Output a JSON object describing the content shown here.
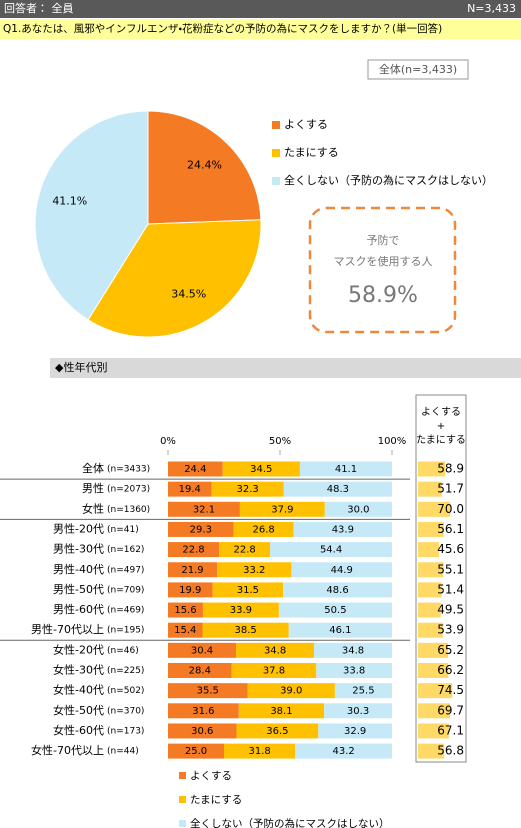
{
  "header": {
    "respondent": "回答者： 全員",
    "n": "N=3,433",
    "question": "Q1.あなたは、風邪やインフルエンザ・花粉症などの予防の為にマスクをしますか？(単一回答)"
  },
  "total_box": "全体(n=3,433)",
  "callout": {
    "lines": [
      "予防で",
      "マスクを使用する人"
    ],
    "value": "58.9%"
  },
  "section_title": "◆性年代別",
  "chart_data": [
    {
      "type": "pie",
      "labels": [
        "よくする",
        "たまにする",
        "全くしない（予防の為にマスクはしない）"
      ],
      "values": [
        24.4,
        34.5,
        41.1
      ],
      "value_labels": [
        "24.4%",
        "34.5%",
        "41.1%"
      ],
      "colors": [
        "#f47a24",
        "#ffc000",
        "#c6e9f8"
      ]
    },
    {
      "type": "stacked-barh",
      "categories": [
        "全体",
        "男性",
        "女性",
        "男性-20代",
        "男性-30代",
        "男性-40代",
        "男性-50代",
        "男性-60代",
        "男性-70代以上",
        "女性-20代",
        "女性-30代",
        "女性-40代",
        "女性-50代",
        "女性-60代",
        "女性-70代以上"
      ],
      "category_notes": [
        "(n=3433)",
        "(n=2073)",
        "(n=1360)",
        "(n=41)",
        "(n=162)",
        "(n=497)",
        "(n=709)",
        "(n=469)",
        "(n=195)",
        "(n=46)",
        "(n=225)",
        "(n=502)",
        "(n=370)",
        "(n=173)",
        "(n=44)"
      ],
      "series": [
        {
          "name": "よくする",
          "color": "#f47a24",
          "values": [
            24.4,
            19.4,
            32.1,
            29.3,
            22.8,
            21.9,
            19.9,
            15.6,
            15.4,
            30.4,
            28.4,
            35.5,
            31.6,
            30.6,
            25.0
          ],
          "value_labels": [
            "24.4",
            "19.4",
            "32.1",
            "29.3",
            "22.8",
            "21.9",
            "19.9",
            "15.6",
            "15.4",
            "30.4",
            "28.4",
            "35.5",
            "31.6",
            "30.6",
            "25.0"
          ]
        },
        {
          "name": "たまにする",
          "color": "#ffc000",
          "values": [
            34.5,
            32.3,
            37.9,
            26.8,
            22.8,
            33.2,
            31.5,
            33.9,
            38.5,
            34.8,
            37.8,
            39.0,
            38.1,
            36.5,
            31.8
          ],
          "value_labels": [
            "34.5",
            "32.3",
            "37.9",
            "26.8",
            "22.8",
            "33.2",
            "31.5",
            "33.9",
            "38.5",
            "34.8",
            "37.8",
            "39.0",
            "38.1",
            "36.5",
            "31.8"
          ]
        },
        {
          "name": "全くしない（予防の為にマスクはしない）",
          "color": "#c6e9f8",
          "values": [
            41.1,
            48.3,
            30.0,
            43.9,
            54.4,
            44.9,
            48.6,
            50.5,
            46.1,
            34.8,
            33.8,
            25.5,
            30.3,
            32.9,
            43.2
          ],
          "value_labels": [
            "41.1",
            "48.3",
            "30.0",
            "43.9",
            "54.4",
            "44.9",
            "48.6",
            "50.5",
            "46.1",
            "34.8",
            "33.8",
            "25.5",
            "30.3",
            "32.9",
            "43.2"
          ]
        }
      ],
      "sum_header": [
        "よくする",
        "+",
        "たまにする"
      ],
      "sum_values": [
        58.9,
        51.7,
        70.0,
        56.1,
        45.6,
        55.1,
        51.4,
        49.5,
        53.9,
        65.2,
        66.2,
        74.5,
        69.7,
        67.1,
        56.8
      ],
      "sum_value_labels": [
        "58.9",
        "51.7",
        "70.0",
        "56.1",
        "45.6",
        "55.1",
        "51.4",
        "49.5",
        "53.9",
        "65.2",
        "66.2",
        "74.5",
        "69.7",
        "67.1",
        "56.8"
      ],
      "sum_color": "#ffd966",
      "xlim": [
        0,
        100
      ],
      "xticks": [
        {
          "value": 0,
          "label": "0%"
        },
        {
          "value": 50,
          "label": "50%"
        },
        {
          "value": 100,
          "label": "100%"
        }
      ]
    }
  ]
}
